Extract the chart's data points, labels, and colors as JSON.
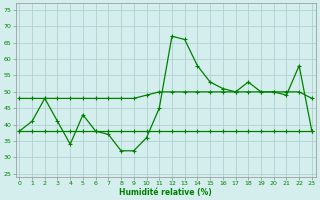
{
  "x": [
    0,
    1,
    2,
    3,
    4,
    5,
    6,
    7,
    8,
    9,
    10,
    11,
    12,
    13,
    14,
    15,
    16,
    17,
    18,
    19,
    20,
    21,
    22,
    23
  ],
  "line_volatile": [
    38,
    41,
    48,
    41,
    34,
    43,
    38,
    37,
    32,
    32,
    36,
    45,
    67,
    66,
    58,
    53,
    51,
    50,
    53,
    50,
    50,
    49,
    58,
    38
  ],
  "line_upper": [
    48,
    48,
    48,
    48,
    48,
    48,
    48,
    48,
    48,
    48,
    49,
    50,
    50,
    50,
    50,
    50,
    50,
    50,
    50,
    50,
    50,
    50,
    50,
    48
  ],
  "line_lower": [
    38,
    38,
    38,
    38,
    38,
    38,
    38,
    38,
    38,
    38,
    38,
    38,
    38,
    38,
    38,
    38,
    38,
    38,
    38,
    38,
    38,
    38,
    38,
    38
  ],
  "line_color": "#008000",
  "bg_color": "#d4eeed",
  "grid_color": "#aacccc",
  "xlabel": "Humidité relative (%)",
  "yticks": [
    25,
    30,
    35,
    40,
    45,
    50,
    55,
    60,
    65,
    70,
    75
  ],
  "xticks": [
    0,
    1,
    2,
    3,
    4,
    5,
    6,
    7,
    8,
    9,
    10,
    11,
    12,
    13,
    14,
    15,
    16,
    17,
    18,
    19,
    20,
    21,
    22,
    23
  ],
  "ylim": [
    24,
    77
  ],
  "xlim": [
    -0.3,
    23.3
  ]
}
